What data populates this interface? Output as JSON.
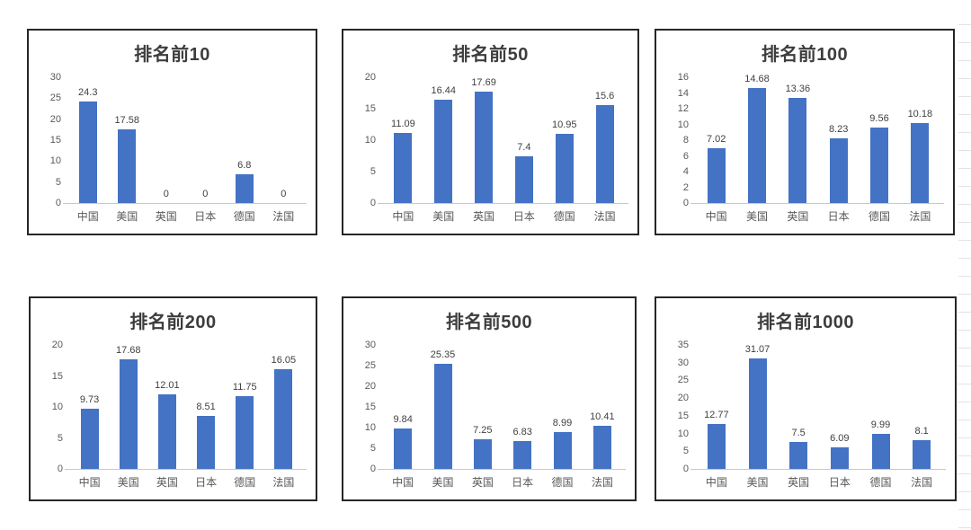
{
  "bar_color": "#4472C4",
  "panel_border_color": "#262626",
  "axis_line_color": "#C8C8C8",
  "margin_lines_color": "#E3E3E3",
  "text_colors": {
    "title": "#3D3D3D",
    "axis": "#595959",
    "data_label": "#404040"
  },
  "chart_data": [
    {
      "type": "bar",
      "title": "排名前10",
      "categories": [
        "中国",
        "美国",
        "英国",
        "日本",
        "德国",
        "法国"
      ],
      "values": [
        24.3,
        17.58,
        0,
        0,
        6.8,
        0
      ],
      "labels": [
        "24.3",
        "17.58",
        "0",
        "0",
        "6.8",
        "0"
      ],
      "xlabel": "",
      "ylabel": "",
      "ylim": [
        0,
        30
      ],
      "yticks": [
        0,
        5,
        10,
        15,
        20,
        25,
        30
      ],
      "grid": "off",
      "legend": "none"
    },
    {
      "type": "bar",
      "title": "排名前50",
      "categories": [
        "中国",
        "美国",
        "英国",
        "日本",
        "德国",
        "法国"
      ],
      "values": [
        11.09,
        16.44,
        17.69,
        7.4,
        10.95,
        15.6
      ],
      "labels": [
        "11.09",
        "16.44",
        "17.69",
        "7.4",
        "10.95",
        "15.6"
      ],
      "xlabel": "",
      "ylabel": "",
      "ylim": [
        0,
        20
      ],
      "yticks": [
        0,
        5,
        10,
        15,
        20
      ],
      "grid": "off",
      "legend": "none"
    },
    {
      "type": "bar",
      "title": "排名前100",
      "categories": [
        "中国",
        "美国",
        "英国",
        "日本",
        "德国",
        "法国"
      ],
      "values": [
        7.02,
        14.68,
        13.36,
        8.23,
        9.56,
        10.18
      ],
      "labels": [
        "7.02",
        "14.68",
        "13.36",
        "8.23",
        "9.56",
        "10.18"
      ],
      "xlabel": "",
      "ylabel": "",
      "ylim": [
        0,
        16
      ],
      "yticks": [
        0,
        2,
        4,
        6,
        8,
        10,
        12,
        14,
        16
      ],
      "grid": "off",
      "legend": "none"
    },
    {
      "type": "bar",
      "title": "排名前200",
      "categories": [
        "中国",
        "美国",
        "英国",
        "日本",
        "德国",
        "法国"
      ],
      "values": [
        9.73,
        17.68,
        12.01,
        8.51,
        11.75,
        16.05
      ],
      "labels": [
        "9.73",
        "17.68",
        "12.01",
        "8.51",
        "11.75",
        "16.05"
      ],
      "xlabel": "",
      "ylabel": "",
      "ylim": [
        0,
        20
      ],
      "yticks": [
        0,
        5,
        10,
        15,
        20
      ],
      "grid": "off",
      "legend": "none"
    },
    {
      "type": "bar",
      "title": "排名前500",
      "categories": [
        "中国",
        "美国",
        "英国",
        "日本",
        "德国",
        "法国"
      ],
      "values": [
        9.84,
        25.35,
        7.25,
        6.83,
        8.99,
        10.41
      ],
      "labels": [
        "9.84",
        "25.35",
        "7.25",
        "6.83",
        "8.99",
        "10.41"
      ],
      "xlabel": "",
      "ylabel": "",
      "ylim": [
        0,
        30
      ],
      "yticks": [
        0,
        5,
        10,
        15,
        20,
        25,
        30
      ],
      "grid": "off",
      "legend": "none"
    },
    {
      "type": "bar",
      "title": "排名前1000",
      "categories": [
        "中国",
        "美国",
        "英国",
        "日本",
        "德国",
        "法国"
      ],
      "values": [
        12.77,
        31.07,
        7.5,
        6.09,
        9.99,
        8.1
      ],
      "labels": [
        "12.77",
        "31.07",
        "7.5",
        "6.09",
        "9.99",
        "8.1"
      ],
      "xlabel": "",
      "ylabel": "",
      "ylim": [
        0,
        35
      ],
      "yticks": [
        0,
        5,
        10,
        15,
        20,
        25,
        30,
        35
      ],
      "grid": "off",
      "legend": "none"
    }
  ]
}
